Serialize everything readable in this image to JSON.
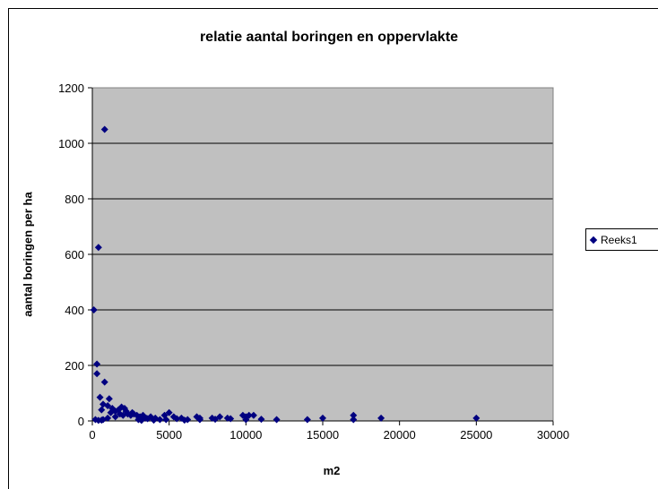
{
  "chart_data": {
    "type": "scatter",
    "title": "relatie aantal boringen en oppervlakte",
    "xlabel": "m2",
    "ylabel": "aantal boringen per ha",
    "xlim": [
      0,
      30000
    ],
    "ylim": [
      0,
      1200
    ],
    "xticks": [
      0,
      5000,
      10000,
      15000,
      20000,
      25000,
      30000
    ],
    "yticks": [
      0,
      200,
      400,
      600,
      800,
      1000,
      1200
    ],
    "grid": "horizontal",
    "plot_background": "#C0C0C0",
    "marker_color": "#000080",
    "legend_position": "right",
    "series": [
      {
        "name": "Reeks1",
        "points": [
          [
            800,
            1050
          ],
          [
            400,
            625
          ],
          [
            100,
            400
          ],
          [
            300,
            205
          ],
          [
            300,
            170
          ],
          [
            800,
            140
          ],
          [
            500,
            85
          ],
          [
            1100,
            80
          ],
          [
            700,
            60
          ],
          [
            600,
            40
          ],
          [
            1000,
            55
          ],
          [
            1300,
            45
          ],
          [
            1500,
            35
          ],
          [
            1700,
            40
          ],
          [
            1900,
            50
          ],
          [
            2100,
            45
          ],
          [
            1800,
            25
          ],
          [
            2300,
            25
          ],
          [
            2500,
            20
          ],
          [
            2700,
            25
          ],
          [
            2900,
            20
          ],
          [
            3100,
            15
          ],
          [
            3300,
            20
          ],
          [
            3500,
            10
          ],
          [
            3800,
            15
          ],
          [
            4100,
            10
          ],
          [
            4400,
            5
          ],
          [
            4700,
            20
          ],
          [
            5000,
            30
          ],
          [
            5300,
            15
          ],
          [
            5800,
            10
          ],
          [
            6200,
            5
          ],
          [
            6800,
            15
          ],
          [
            7000,
            10
          ],
          [
            7800,
            10
          ],
          [
            8300,
            15
          ],
          [
            8800,
            10
          ],
          [
            9800,
            20
          ],
          [
            10000,
            15
          ],
          [
            10200,
            20
          ],
          [
            10500,
            20
          ],
          [
            12000,
            5
          ],
          [
            14000,
            5
          ],
          [
            15000,
            10
          ],
          [
            17000,
            20
          ],
          [
            17000,
            5
          ],
          [
            18800,
            10
          ],
          [
            25000,
            10
          ],
          [
            200,
            5
          ],
          [
            400,
            2
          ],
          [
            700,
            5
          ],
          [
            1000,
            10
          ],
          [
            1500,
            15
          ],
          [
            2000,
            20
          ],
          [
            3000,
            5
          ],
          [
            3200,
            2
          ],
          [
            4000,
            3
          ],
          [
            4800,
            5
          ],
          [
            6000,
            3
          ],
          [
            7000,
            5
          ],
          [
            9000,
            8
          ],
          [
            10000,
            5
          ],
          [
            600,
            3
          ],
          [
            1200,
            30
          ],
          [
            2200,
            35
          ],
          [
            2600,
            30
          ],
          [
            3600,
            8
          ],
          [
            5500,
            8
          ],
          [
            8000,
            6
          ],
          [
            11000,
            6
          ]
        ]
      }
    ]
  }
}
